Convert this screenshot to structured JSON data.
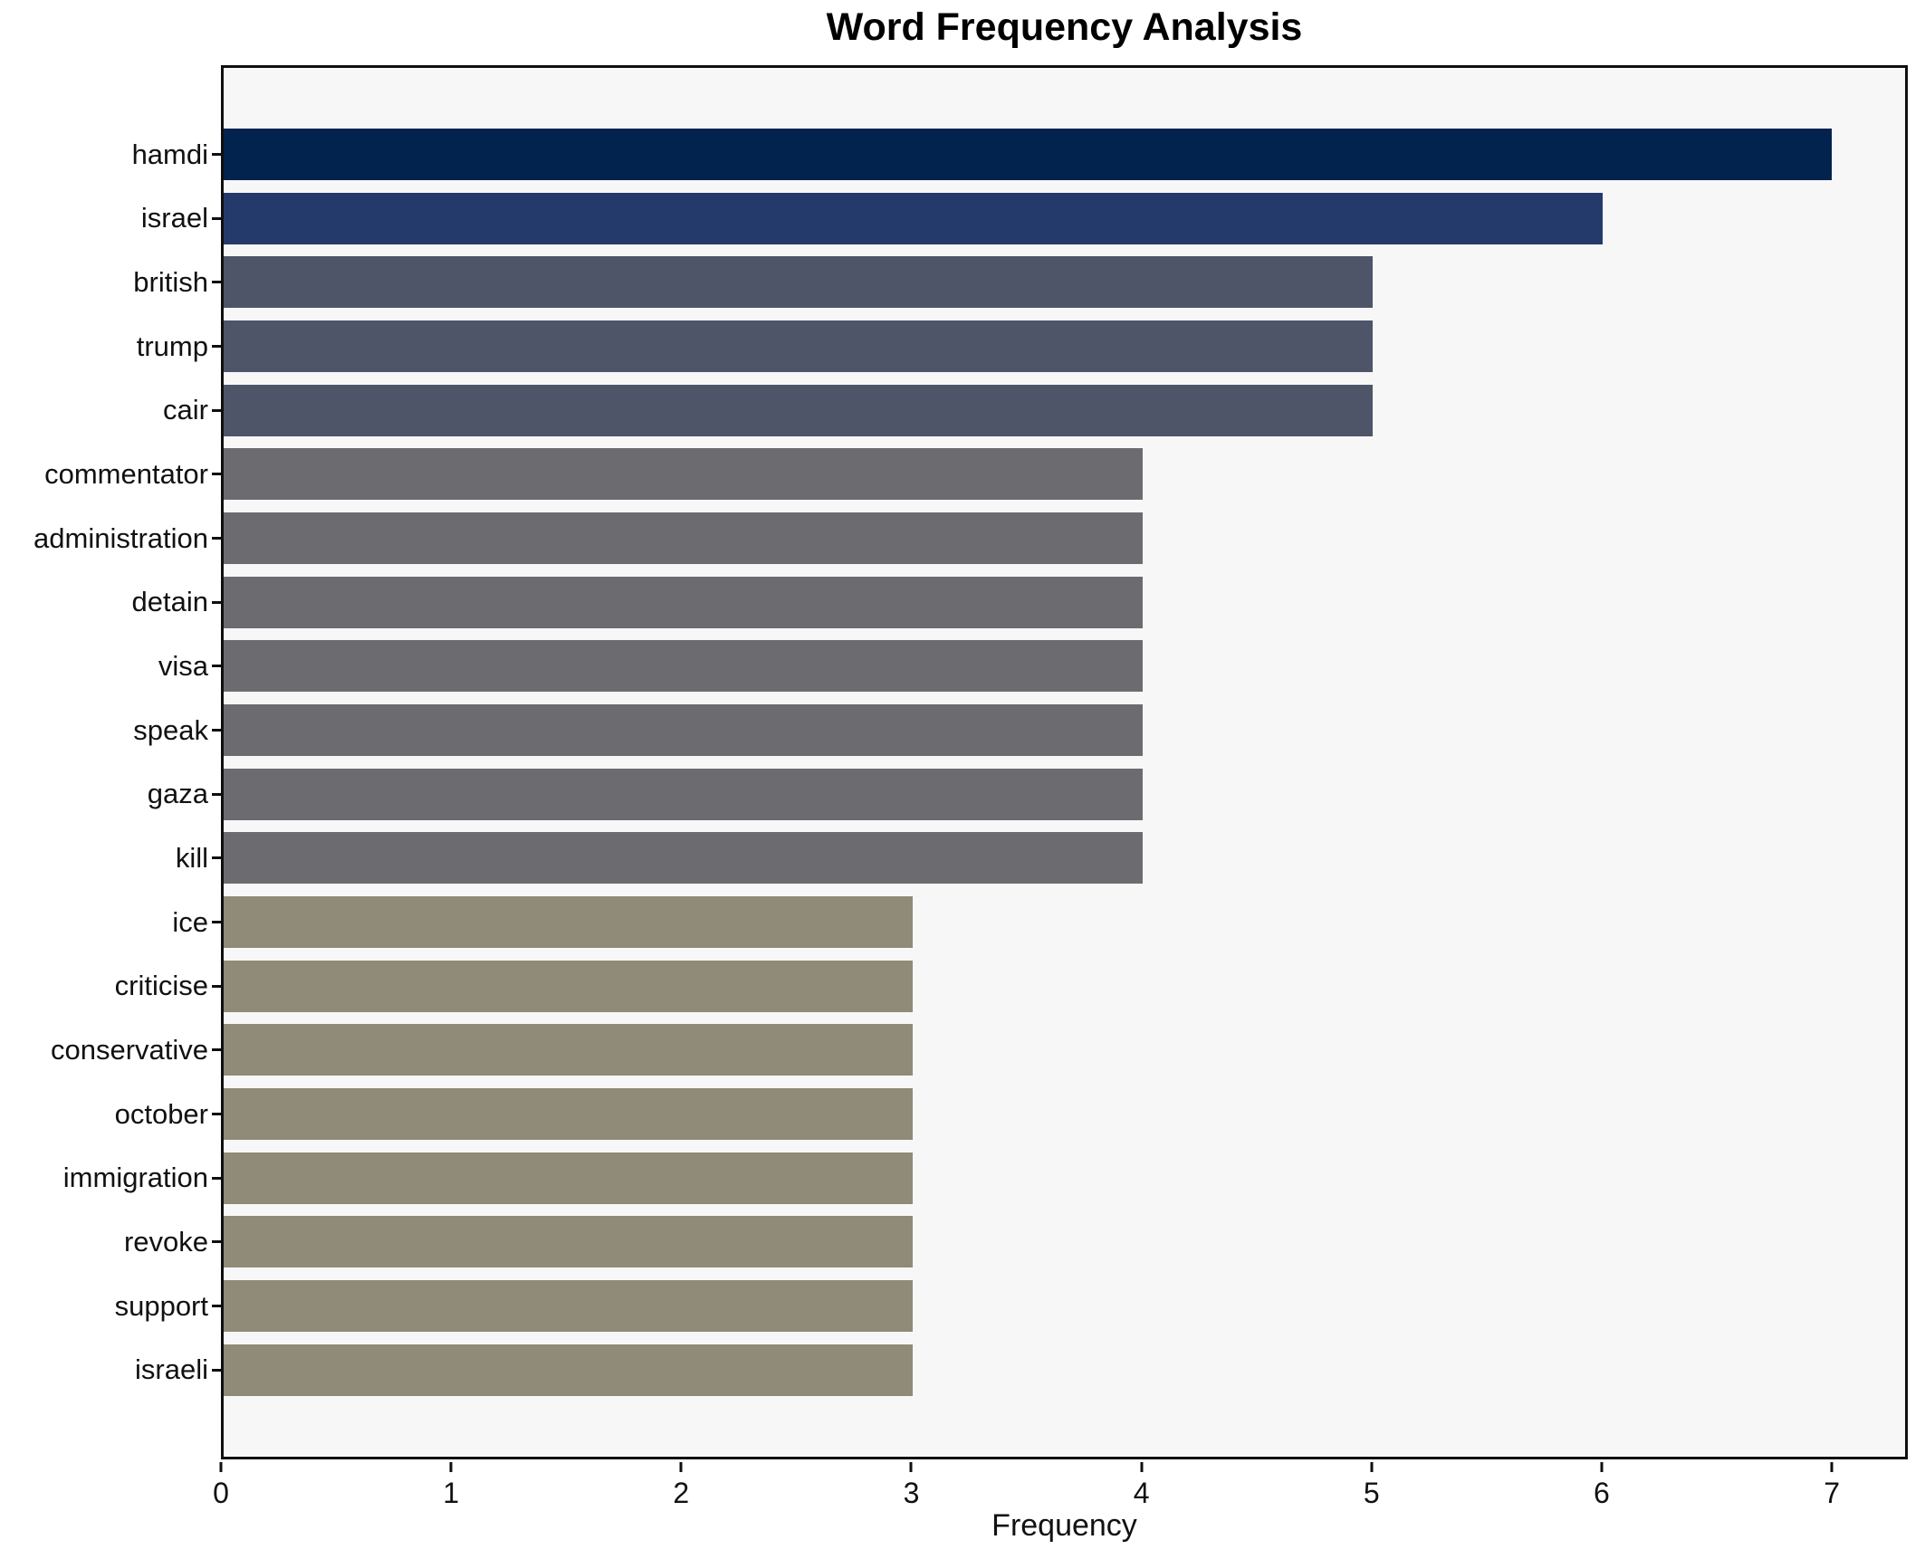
{
  "chart_data": {
    "type": "bar",
    "orientation": "horizontal",
    "title": "Word Frequency Analysis",
    "xlabel": "Frequency",
    "ylabel": "",
    "grid": false,
    "legend": false,
    "xlim": [
      0,
      7.33
    ],
    "x_ticks": [
      0,
      1,
      2,
      3,
      4,
      5,
      6,
      7
    ],
    "categories": [
      "hamdi",
      "israel",
      "british",
      "trump",
      "cair",
      "commentator",
      "administration",
      "detain",
      "visa",
      "speak",
      "gaza",
      "kill",
      "ice",
      "criticise",
      "conservative",
      "october",
      "immigration",
      "revoke",
      "support",
      "israeli"
    ],
    "values": [
      7,
      6,
      5,
      5,
      5,
      4,
      4,
      4,
      4,
      4,
      4,
      4,
      3,
      3,
      3,
      3,
      3,
      3,
      3,
      3
    ],
    "bar_colors": [
      "#02234d",
      "#243a6b",
      "#4e5569",
      "#4e5569",
      "#4e5569",
      "#6c6c70",
      "#6c6c70",
      "#6c6c70",
      "#6c6c70",
      "#6c6c70",
      "#6c6c70",
      "#6c6c70",
      "#908a78",
      "#908a78",
      "#908a78",
      "#908a78",
      "#908a78",
      "#908a78",
      "#908a78",
      "#908a78"
    ],
    "plot_background": "#f7f7f8",
    "figure_background": "#ffffff",
    "spine_color": "#0f0f0f"
  }
}
